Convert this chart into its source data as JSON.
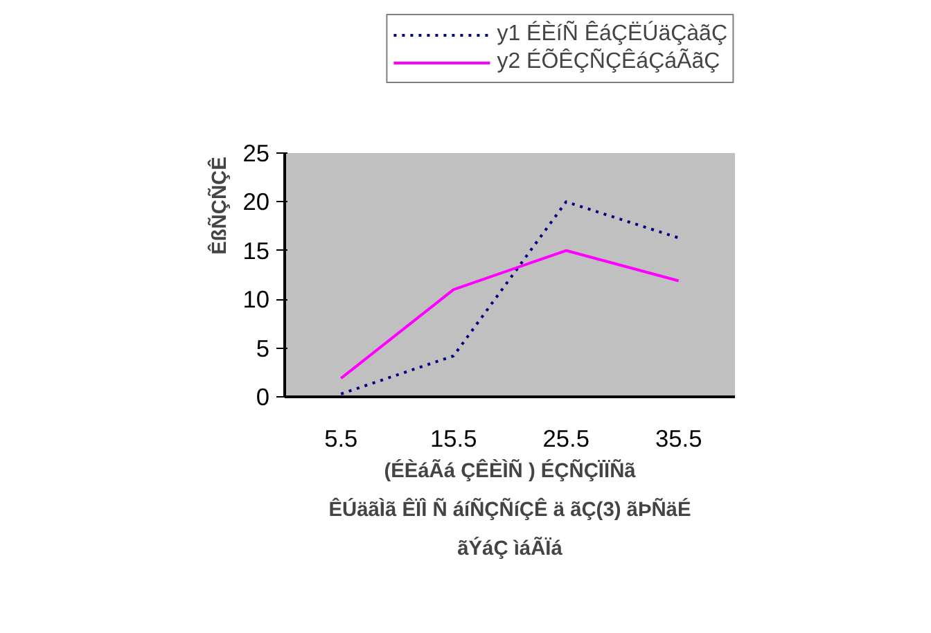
{
  "chart_data": {
    "type": "line",
    "categories": [
      "5.5",
      "15.5",
      "25.5",
      "35.5"
    ],
    "series": [
      {
        "name": "y1 ÉÈíÑ ÊáÇËÚäÇàãÇ",
        "color": "#000080",
        "line_style": "dotted",
        "values": [
          0.3,
          4.2,
          20,
          16.3
        ]
      },
      {
        "name": "y2 ÉÕÊÇÑÇÊáÇáÃãÇ",
        "color": "#ff00ff",
        "line_style": "solid",
        "values": [
          1.9,
          11,
          15,
          11.9
        ]
      }
    ],
    "ylabel": "ÊßÑÇÑÇÊ",
    "xlabel": "(ÉÈáÃá ÇÊÈÌÑ ) ÉÇÑÇÏÏÑã\nÊÚäãÌã ÊÏÌ Ñ áíÑÇÑíÇÊ ä ãÇ(3) ãÞÑäÉ\nãÝáÇ ìáÃÏá",
    "ylim": [
      0,
      25
    ],
    "yticks": [
      0,
      5,
      10,
      15,
      20,
      25
    ],
    "grid": false,
    "legend": "top right",
    "marker": "none"
  }
}
